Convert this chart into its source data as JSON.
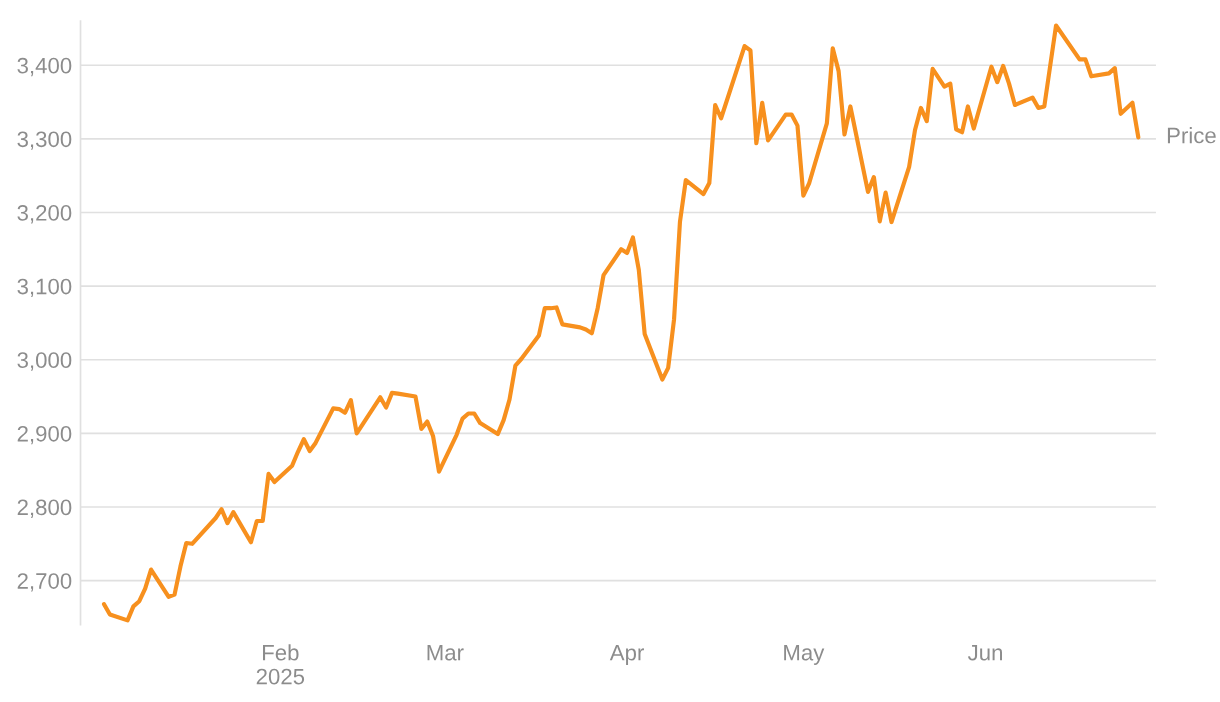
{
  "chart_data": {
    "type": "line",
    "x": [
      "2025-01-02",
      "2025-01-03",
      "2025-01-06",
      "2025-01-07",
      "2025-01-08",
      "2025-01-09",
      "2025-01-10",
      "2025-01-13",
      "2025-01-14",
      "2025-01-15",
      "2025-01-16",
      "2025-01-17",
      "2025-01-21",
      "2025-01-22",
      "2025-01-23",
      "2025-01-24",
      "2025-01-27",
      "2025-01-28",
      "2025-01-29",
      "2025-01-30",
      "2025-01-31",
      "2025-02-03",
      "2025-02-04",
      "2025-02-05",
      "2025-02-06",
      "2025-02-07",
      "2025-02-10",
      "2025-02-11",
      "2025-02-12",
      "2025-02-13",
      "2025-02-14",
      "2025-02-18",
      "2025-02-19",
      "2025-02-20",
      "2025-02-21",
      "2025-02-24",
      "2025-02-25",
      "2025-02-26",
      "2025-02-27",
      "2025-02-28",
      "2025-03-03",
      "2025-03-04",
      "2025-03-05",
      "2025-03-06",
      "2025-03-07",
      "2025-03-10",
      "2025-03-11",
      "2025-03-12",
      "2025-03-13",
      "2025-03-14",
      "2025-03-17",
      "2025-03-18",
      "2025-03-19",
      "2025-03-20",
      "2025-03-21",
      "2025-03-24",
      "2025-03-25",
      "2025-03-26",
      "2025-03-27",
      "2025-03-28",
      "2025-03-31",
      "2025-04-01",
      "2025-04-02",
      "2025-04-03",
      "2025-04-04",
      "2025-04-07",
      "2025-04-08",
      "2025-04-09",
      "2025-04-10",
      "2025-04-11",
      "2025-04-14",
      "2025-04-15",
      "2025-04-16",
      "2025-04-17",
      "2025-04-21",
      "2025-04-22",
      "2025-04-23",
      "2025-04-24",
      "2025-04-25",
      "2025-04-28",
      "2025-04-29",
      "2025-04-30",
      "2025-05-01",
      "2025-05-02",
      "2025-05-05",
      "2025-05-06",
      "2025-05-07",
      "2025-05-08",
      "2025-05-09",
      "2025-05-12",
      "2025-05-13",
      "2025-05-14",
      "2025-05-15",
      "2025-05-16",
      "2025-05-19",
      "2025-05-20",
      "2025-05-21",
      "2025-05-22",
      "2025-05-23",
      "2025-05-25",
      "2025-05-26",
      "2025-05-27",
      "2025-05-28",
      "2025-05-29",
      "2025-05-30",
      "2025-06-02",
      "2025-06-03",
      "2025-06-04",
      "2025-06-05",
      "2025-06-06",
      "2025-06-09",
      "2025-06-10",
      "2025-06-11",
      "2025-06-13",
      "2025-06-17",
      "2025-06-18",
      "2025-06-19",
      "2025-06-22",
      "2025-06-23",
      "2025-06-24",
      "2025-06-26",
      "2025-06-27"
    ],
    "series": [
      {
        "name": "Price",
        "color": "#f7901e",
        "values": [
          2668,
          2654,
          2646,
          2665,
          2672,
          2689,
          2715,
          2678,
          2681,
          2719,
          2751,
          2750,
          2785,
          2797,
          2778,
          2793,
          2752,
          2781,
          2781,
          2845,
          2834,
          2856,
          2875,
          2892,
          2876,
          2887,
          2934,
          2933,
          2928,
          2945,
          2900,
          2949,
          2935,
          2955,
          2954,
          2950,
          2906,
          2916,
          2896,
          2848,
          2898,
          2920,
          2927,
          2927,
          2914,
          2899,
          2918,
          2946,
          2992,
          3001,
          3033,
          3070,
          3070,
          3071,
          3048,
          3044,
          3041,
          3036,
          3070,
          3115,
          3150,
          3145,
          3166,
          3122,
          3035,
          2973,
          2989,
          3055,
          3187,
          3244,
          3225,
          3240,
          3346,
          3328,
          3426,
          3420,
          3294,
          3349,
          3298,
          3333,
          3333,
          3318,
          3223,
          3240,
          3321,
          3423,
          3392,
          3306,
          3344,
          3228,
          3248,
          3188,
          3227,
          3187,
          3262,
          3312,
          3342,
          3324,
          3395,
          3371,
          3375,
          3313,
          3309,
          3344,
          3314,
          3398,
          3377,
          3399,
          3375,
          3346,
          3356,
          3342,
          3344,
          3454,
          3408,
          3408,
          3385,
          3389,
          3396,
          3334,
          3349,
          3302
        ]
      }
    ],
    "xlim": [
      "2024-12-29",
      "2025-06-30"
    ],
    "xticks": [
      {
        "value": "2025-02-01",
        "label": "Feb\n2025"
      },
      {
        "value": "2025-03-01",
        "label": "Mar"
      },
      {
        "value": "2025-04-01",
        "label": "Apr"
      },
      {
        "value": "2025-05-01",
        "label": "May"
      },
      {
        "value": "2025-06-01",
        "label": "Jun"
      }
    ],
    "yticks": [
      {
        "value": 2700,
        "label": "2,700"
      },
      {
        "value": 2800,
        "label": "2,800"
      },
      {
        "value": 2900,
        "label": "2,900"
      },
      {
        "value": 3000,
        "label": "3,000"
      },
      {
        "value": 3100,
        "label": "3,100"
      },
      {
        "value": 3200,
        "label": "3,200"
      },
      {
        "value": 3300,
        "label": "3,300"
      },
      {
        "value": 3400,
        "label": "3,400"
      }
    ],
    "ylim": [
      2640,
      3460
    ],
    "grid": "y",
    "legend": false
  }
}
